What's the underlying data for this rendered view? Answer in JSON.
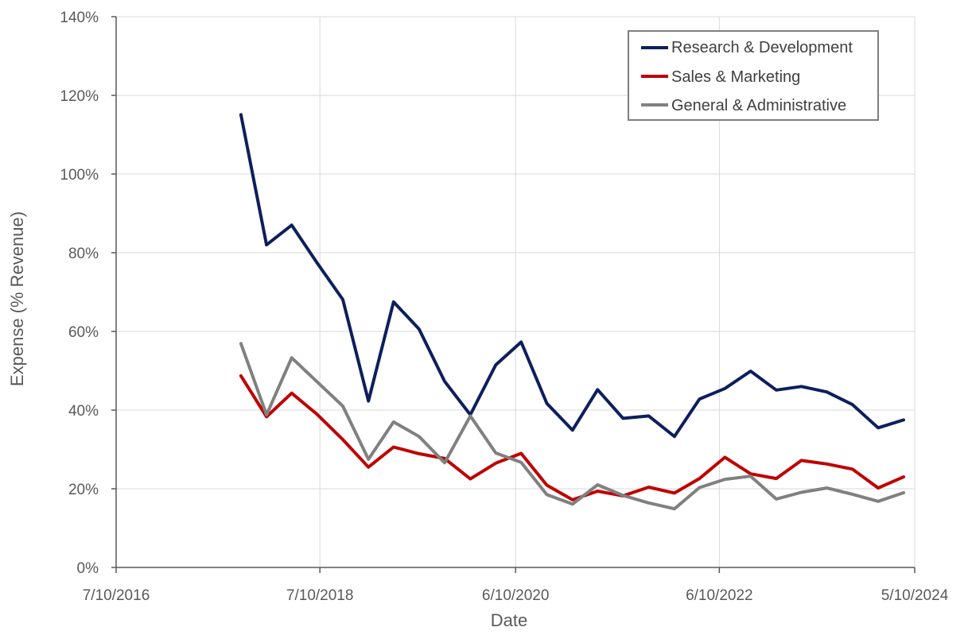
{
  "chart_data": {
    "type": "line",
    "title": "",
    "xlabel": "Date",
    "ylabel": "Expense (% Revenue)",
    "x_is_date": true,
    "xlim": [
      "2016-07-10",
      "2024-05-10"
    ],
    "xticks": [
      "2016-07-10",
      "2018-07-10",
      "2020-06-10",
      "2022-06-10",
      "2024-05-10"
    ],
    "xtick_labels": [
      "7/10/2016",
      "7/10/2018",
      "6/10/2020",
      "6/10/2022",
      "5/10/2024"
    ],
    "ylim": [
      0,
      140
    ],
    "yticks": [
      0,
      20,
      40,
      60,
      80,
      100,
      120,
      140
    ],
    "ytick_labels": [
      "0%",
      "20%",
      "40%",
      "60%",
      "80%",
      "100%",
      "120%",
      "140%"
    ],
    "grid": true,
    "legend_position": "top-right",
    "x": [
      "2017-09-30",
      "2017-12-31",
      "2018-03-31",
      "2018-06-30",
      "2018-09-30",
      "2018-12-31",
      "2019-03-31",
      "2019-06-30",
      "2019-09-30",
      "2019-12-31",
      "2020-03-31",
      "2020-06-30",
      "2020-09-30",
      "2020-12-31",
      "2021-03-31",
      "2021-06-30",
      "2021-09-30",
      "2021-12-31",
      "2022-03-31",
      "2022-06-30",
      "2022-09-30",
      "2022-12-31",
      "2023-03-31",
      "2023-06-30",
      "2023-09-30",
      "2023-12-31",
      "2024-03-31"
    ],
    "series": [
      {
        "name": "Research & Development",
        "color": "#0d1f5c",
        "values": [
          115.1,
          82.0,
          87.0,
          77.4,
          68.1,
          42.3,
          67.5,
          60.6,
          47.3,
          38.8,
          51.5,
          57.3,
          41.7,
          34.9,
          45.2,
          37.9,
          38.5,
          33.3,
          42.8,
          45.5,
          49.9,
          45.1,
          46.0,
          44.6,
          41.4,
          35.5,
          37.5
        ]
      },
      {
        "name": "Sales & Marketing",
        "color": "#c00000",
        "values": [
          48.7,
          38.3,
          44.3,
          38.9,
          32.5,
          25.5,
          30.6,
          28.9,
          27.7,
          22.5,
          26.5,
          29.0,
          20.9,
          17.2,
          19.4,
          18.2,
          20.4,
          18.9,
          22.6,
          28.0,
          23.8,
          22.6,
          27.2,
          26.3,
          25.0,
          20.2,
          23.0
        ]
      },
      {
        "name": "General & Administrative",
        "color": "#808080",
        "values": [
          56.9,
          38.8,
          53.3,
          47.2,
          41.0,
          27.5,
          37.0,
          33.3,
          26.6,
          38.5,
          29.1,
          26.7,
          18.5,
          16.1,
          21.0,
          18.3,
          16.4,
          14.9,
          20.3,
          22.4,
          23.2,
          17.4,
          19.1,
          20.2,
          18.6,
          16.8,
          19.0
        ]
      }
    ]
  }
}
